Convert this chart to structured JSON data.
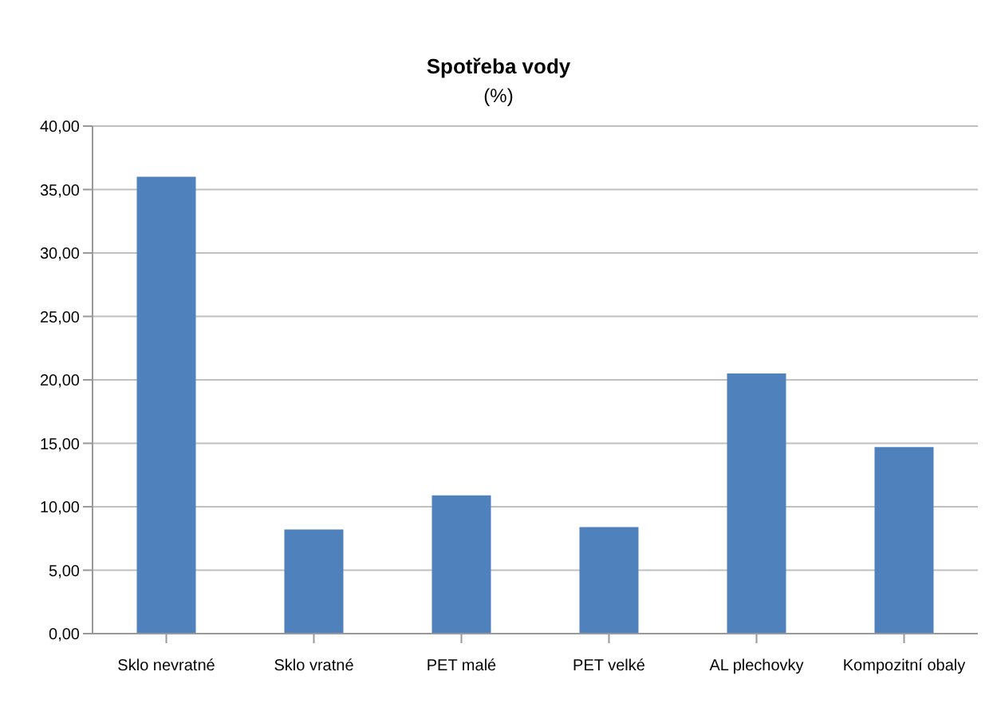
{
  "chart_data": {
    "type": "bar",
    "title": "Spotřeba vody",
    "subtitle": "(%)",
    "categories": [
      "Sklo nevratné",
      "Sklo vratné",
      "PET malé",
      "PET velké",
      "AL plechovky",
      "Kompozitní obaly"
    ],
    "values": [
      36.0,
      8.2,
      10.9,
      8.4,
      20.5,
      14.7
    ],
    "color": "#4f81bd",
    "ylim": [
      0,
      40
    ],
    "yticks": [
      {
        "value": 0,
        "label": "0,00"
      },
      {
        "value": 5,
        "label": "5,00"
      },
      {
        "value": 10,
        "label": "10,00"
      },
      {
        "value": 15,
        "label": "15,00"
      },
      {
        "value": 20,
        "label": "20,00"
      },
      {
        "value": 25,
        "label": "25,00"
      },
      {
        "value": 30,
        "label": "30,00"
      },
      {
        "value": 35,
        "label": "35,00"
      },
      {
        "value": 40,
        "label": "40,00"
      }
    ],
    "grid": "y"
  }
}
